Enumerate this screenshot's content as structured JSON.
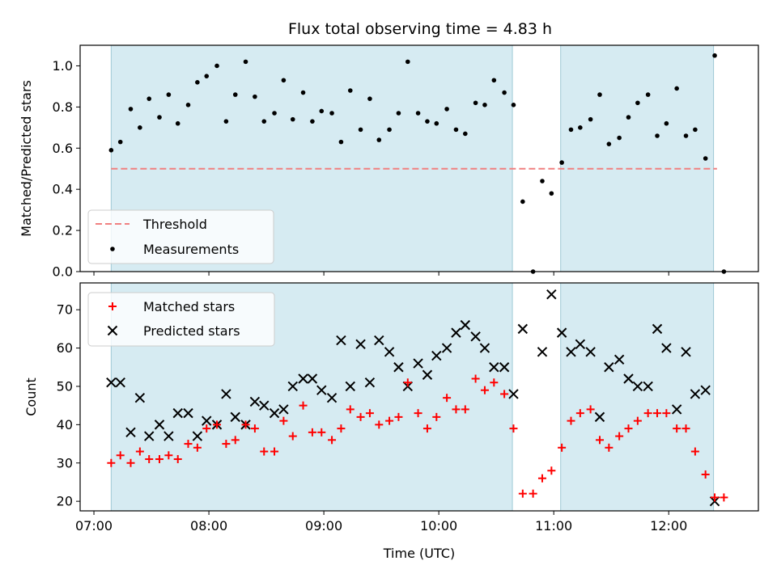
{
  "chart_data": [
    {
      "type": "scatter",
      "panel": "top",
      "title": "Flux total observing time = 4.83 h",
      "ylabel": "Matched/Predicted stars",
      "xlabel": "",
      "xlim_hours": [
        6.88,
        12.78
      ],
      "ylim": [
        0,
        1.1
      ],
      "yticks": [
        0.0,
        0.2,
        0.4,
        0.6,
        0.8,
        1.0
      ],
      "ytick_labels": [
        "0.0",
        "0.2",
        "0.4",
        "0.6",
        "0.8",
        "1.0"
      ],
      "shaded_spans_hours": [
        [
          7.15,
          10.64
        ],
        [
          11.06,
          12.39
        ]
      ],
      "threshold": {
        "label": "Threshold",
        "y": 0.5,
        "x_range_hours": [
          7.15,
          12.42
        ],
        "color": "#f08080"
      },
      "legend": {
        "location": "lower-left",
        "entries": [
          "Threshold",
          "Measurements"
        ]
      },
      "series": [
        {
          "name": "Measurements",
          "color": "#000000",
          "x_hours": [
            7.15,
            7.23,
            7.32,
            7.4,
            7.48,
            7.57,
            7.65,
            7.73,
            7.82,
            7.9,
            7.98,
            8.07,
            8.15,
            8.23,
            8.32,
            8.4,
            8.48,
            8.57,
            8.65,
            8.73,
            8.82,
            8.9,
            8.98,
            9.07,
            9.15,
            9.23,
            9.32,
            9.4,
            9.48,
            9.57,
            9.65,
            9.73,
            9.82,
            9.9,
            9.98,
            10.07,
            10.15,
            10.23,
            10.32,
            10.4,
            10.48,
            10.57,
            10.65,
            10.73,
            10.82,
            10.9,
            10.98,
            11.07,
            11.15,
            11.23,
            11.32,
            11.4,
            11.48,
            11.57,
            11.65,
            11.73,
            11.82,
            11.9,
            11.98,
            12.07,
            12.15,
            12.23,
            12.32,
            12.4,
            12.48
          ],
          "y": [
            0.59,
            0.63,
            0.79,
            0.7,
            0.84,
            0.75,
            0.86,
            0.72,
            0.81,
            0.92,
            0.95,
            1.0,
            0.73,
            0.86,
            1.02,
            0.85,
            0.73,
            0.77,
            0.93,
            0.74,
            0.87,
            0.73,
            0.78,
            0.77,
            0.63,
            0.88,
            0.69,
            0.84,
            0.64,
            0.69,
            0.77,
            1.02,
            0.77,
            0.73,
            0.72,
            0.79,
            0.69,
            0.67,
            0.82,
            0.81,
            0.93,
            0.87,
            0.81,
            0.34,
            0.0,
            0.44,
            0.38,
            0.53,
            0.69,
            0.7,
            0.74,
            0.86,
            0.62,
            0.65,
            0.75,
            0.82,
            0.86,
            0.66,
            0.72,
            0.89,
            0.66,
            0.69,
            0.55,
            1.05,
            0.0
          ]
        }
      ]
    },
    {
      "type": "scatter",
      "panel": "bottom",
      "title": "",
      "xlabel": "Time (UTC)",
      "ylabel": "Count",
      "xlim_hours": [
        6.88,
        12.78
      ],
      "ylim": [
        17.5,
        77
      ],
      "xticks_hours": [
        7,
        8,
        9,
        10,
        11,
        12
      ],
      "xtick_labels": [
        "07:00",
        "08:00",
        "09:00",
        "10:00",
        "11:00",
        "12:00"
      ],
      "yticks": [
        20,
        30,
        40,
        50,
        60,
        70
      ],
      "ytick_labels": [
        "20",
        "30",
        "40",
        "50",
        "60",
        "70"
      ],
      "shaded_spans_hours": [
        [
          7.15,
          10.64
        ],
        [
          11.06,
          12.39
        ]
      ],
      "legend": {
        "location": "top-left",
        "entries": [
          "Matched stars",
          "Predicted stars"
        ]
      },
      "series": [
        {
          "name": "Matched stars",
          "marker": "plus",
          "color": "#ff0000",
          "x_hours": [
            7.15,
            7.23,
            7.32,
            7.4,
            7.48,
            7.57,
            7.65,
            7.73,
            7.82,
            7.9,
            7.98,
            8.07,
            8.15,
            8.23,
            8.32,
            8.4,
            8.48,
            8.57,
            8.65,
            8.73,
            8.82,
            8.9,
            8.98,
            9.07,
            9.15,
            9.23,
            9.32,
            9.4,
            9.48,
            9.57,
            9.65,
            9.73,
            9.82,
            9.9,
            9.98,
            10.07,
            10.15,
            10.23,
            10.32,
            10.4,
            10.48,
            10.57,
            10.65,
            10.73,
            10.82,
            10.9,
            10.98,
            11.07,
            11.15,
            11.23,
            11.32,
            11.4,
            11.48,
            11.57,
            11.65,
            11.73,
            11.82,
            11.9,
            11.98,
            12.07,
            12.15,
            12.23,
            12.32,
            12.4,
            12.48
          ],
          "values": [
            30,
            32,
            30,
            33,
            31,
            31,
            32,
            31,
            35,
            34,
            39,
            40,
            35,
            36,
            40,
            39,
            33,
            33,
            41,
            37,
            45,
            38,
            38,
            36,
            39,
            44,
            42,
            43,
            40,
            41,
            42,
            51,
            43,
            39,
            42,
            47,
            44,
            44,
            52,
            49,
            51,
            48,
            39,
            22,
            22,
            26,
            28,
            34,
            41,
            43,
            44,
            36,
            34,
            37,
            39,
            41,
            43,
            43,
            43,
            39,
            39,
            33,
            27,
            21,
            21
          ]
        },
        {
          "name": "Predicted stars",
          "marker": "x",
          "color": "#000000",
          "x_hours": [
            7.15,
            7.23,
            7.32,
            7.4,
            7.48,
            7.57,
            7.65,
            7.73,
            7.82,
            7.9,
            7.98,
            8.07,
            8.15,
            8.23,
            8.32,
            8.4,
            8.48,
            8.57,
            8.65,
            8.73,
            8.82,
            8.9,
            8.98,
            9.07,
            9.15,
            9.23,
            9.32,
            9.4,
            9.48,
            9.57,
            9.65,
            9.73,
            9.82,
            9.9,
            9.98,
            10.07,
            10.15,
            10.23,
            10.32,
            10.4,
            10.48,
            10.57,
            10.65,
            10.73,
            10.82,
            10.9,
            10.98,
            11.07,
            11.15,
            11.23,
            11.32,
            11.4,
            11.48,
            11.57,
            11.65,
            11.73,
            11.82,
            11.9,
            11.98,
            12.07,
            12.15,
            12.23,
            12.32,
            12.4
          ],
          "values": [
            51,
            51,
            38,
            47,
            37,
            40,
            37,
            43,
            43,
            37,
            41,
            40,
            48,
            42,
            40,
            46,
            45,
            43,
            44,
            50,
            52,
            52,
            49,
            47,
            62,
            50,
            61,
            51,
            62,
            59,
            55,
            50,
            56,
            53,
            58,
            60,
            64,
            66,
            63,
            60,
            55,
            55,
            48,
            65,
            null,
            59,
            74,
            64,
            59,
            61,
            59,
            42,
            55,
            57,
            52,
            50,
            50,
            65,
            60,
            44,
            59,
            48,
            49,
            20
          ]
        }
      ]
    }
  ]
}
